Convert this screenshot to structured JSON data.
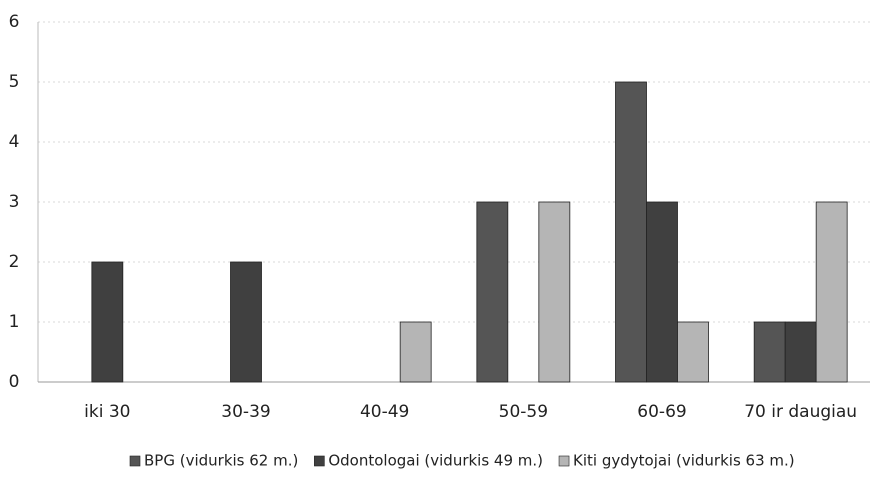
{
  "chart_data": {
    "type": "bar",
    "categories": [
      "iki 30",
      "30-39",
      "40-49",
      "50-59",
      "60-69",
      "70 ir daugiau"
    ],
    "series": [
      {
        "name": "BPG (vidurkis 62 m.)",
        "color": "#555555",
        "values": [
          0,
          0,
          0,
          3,
          5,
          1
        ]
      },
      {
        "name": "Odontologai (vidurkis 49 m.)",
        "color": "#404040",
        "values": [
          2,
          2,
          0,
          0,
          3,
          1
        ]
      },
      {
        "name": "Kiti gydytojai (vidurkis 63 m.)",
        "color": "#b5b5b5",
        "values": [
          0,
          0,
          1,
          3,
          1,
          3
        ]
      }
    ],
    "ylim": [
      0,
      6
    ],
    "yticks": [
      0,
      1,
      2,
      3,
      4,
      5,
      6
    ],
    "grid": true,
    "legend": "bottom"
  }
}
